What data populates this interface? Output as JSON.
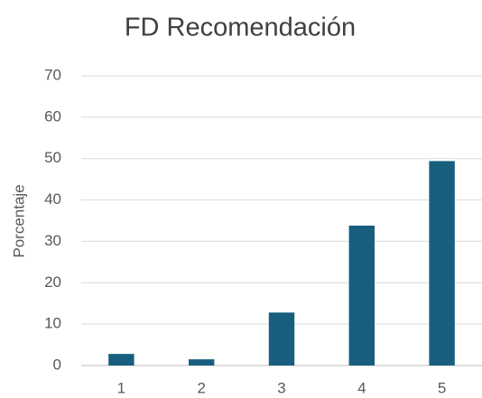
{
  "chart_data": {
    "type": "bar",
    "title": "FD Recomendación",
    "y_label": "Porcentaje",
    "categories": [
      "1",
      "2",
      "3",
      "4",
      "5"
    ],
    "values": [
      2.8,
      1.5,
      12.8,
      33.8,
      49.4
    ],
    "color": "#185f7f",
    "ylim": [
      0,
      70
    ],
    "yticks": [
      0,
      10,
      20,
      30,
      40,
      50,
      60,
      70
    ],
    "grid": true
  }
}
